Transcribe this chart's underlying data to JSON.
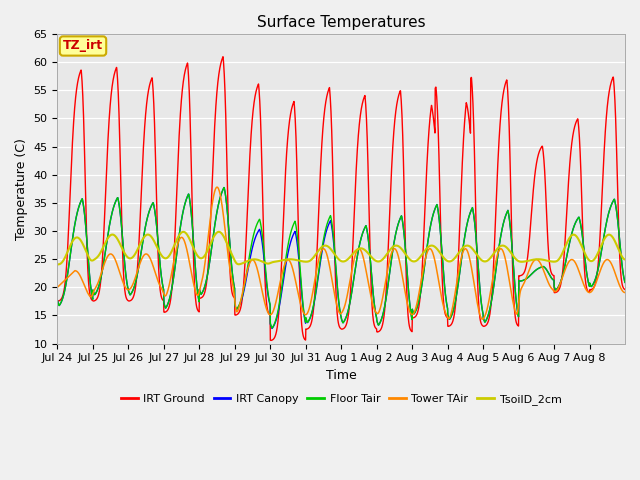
{
  "title": "Surface Temperatures",
  "xlabel": "Time",
  "ylabel": "Temperature (C)",
  "ylim": [
    10,
    65
  ],
  "annotation_text": "TZ_irt",
  "annotation_bg": "#ffff99",
  "annotation_border": "#ccaa00",
  "annotation_text_color": "#cc0000",
  "fig_bg": "#f0f0f0",
  "plot_bg": "#e8e8e8",
  "series_colors": [
    "#ff0000",
    "#0000ff",
    "#00cc00",
    "#ff8800",
    "#cccc00"
  ],
  "series_names": [
    "IRT Ground",
    "IRT Canopy",
    "Floor Tair",
    "Tower TAir",
    "TsoilD_2cm"
  ],
  "tick_labels": [
    "Jul 24",
    "Jul 25",
    "Jul 26",
    "Jul 27",
    "Jul 28",
    "Jul 29",
    "Jul 30",
    "Jul 31",
    "Aug 1",
    "Aug 2",
    "Aug 3",
    "Aug 4",
    "Aug 5",
    "Aug 6",
    "Aug 7",
    "Aug 8"
  ],
  "legend_fontsize": 8,
  "title_fontsize": 11,
  "axis_fontsize": 8,
  "label_fontsize": 9,
  "n_days": 16,
  "irt_ground_peaks": [
    62.0,
    62.5,
    60.5,
    63.5,
    64.5,
    59.5,
    56.5,
    59.0,
    57.5,
    58.5,
    59.0,
    61.0,
    60.5,
    47.0,
    52.5,
    60.5
  ],
  "irt_ground_mins": [
    17.5,
    17.5,
    17.5,
    15.5,
    18.0,
    15.0,
    10.5,
    12.5,
    12.5,
    12.0,
    14.5,
    13.0,
    13.0,
    22.0,
    19.0,
    19.5
  ],
  "canopy_peaks": [
    38.0,
    38.0,
    37.0,
    39.0,
    40.0,
    32.0,
    32.0,
    34.0,
    33.0,
    35.0,
    37.0,
    36.5,
    36.0,
    24.0,
    34.0,
    37.5
  ],
  "canopy_mins": [
    16.0,
    18.0,
    18.0,
    15.5,
    18.0,
    15.5,
    12.0,
    13.0,
    13.0,
    12.5,
    14.5,
    13.5,
    13.0,
    21.0,
    19.0,
    19.5
  ],
  "floor_peaks": [
    38.0,
    38.0,
    37.0,
    39.0,
    40.0,
    34.0,
    34.0,
    35.0,
    33.0,
    35.0,
    37.0,
    36.5,
    36.0,
    24.0,
    34.0,
    37.5
  ],
  "floor_mins": [
    16.0,
    18.0,
    18.0,
    15.5,
    18.0,
    15.5,
    12.0,
    13.0,
    13.0,
    12.5,
    14.5,
    13.5,
    13.0,
    21.0,
    19.0,
    19.5
  ],
  "tower_peaks": [
    23.0,
    26.0,
    26.0,
    29.0,
    38.0,
    25.0,
    25.0,
    27.0,
    27.0,
    27.0,
    27.0,
    27.0,
    27.0,
    25.0,
    25.0,
    25.0
  ],
  "tower_mins": [
    18.0,
    19.5,
    19.5,
    18.0,
    20.0,
    15.0,
    15.0,
    15.0,
    15.5,
    15.0,
    15.0,
    14.0,
    14.5,
    19.5,
    19.0,
    19.0
  ],
  "tsoil_peaks": [
    29.0,
    29.5,
    29.5,
    30.0,
    30.0,
    25.0,
    25.0,
    27.5,
    27.0,
    27.5,
    27.5,
    27.5,
    27.5,
    25.0,
    29.5,
    29.5
  ],
  "tsoil_mins": [
    24.0,
    25.0,
    25.0,
    25.0,
    25.0,
    24.0,
    24.5,
    24.5,
    24.5,
    24.5,
    24.5,
    24.5,
    24.5,
    24.5,
    24.5,
    24.5
  ]
}
